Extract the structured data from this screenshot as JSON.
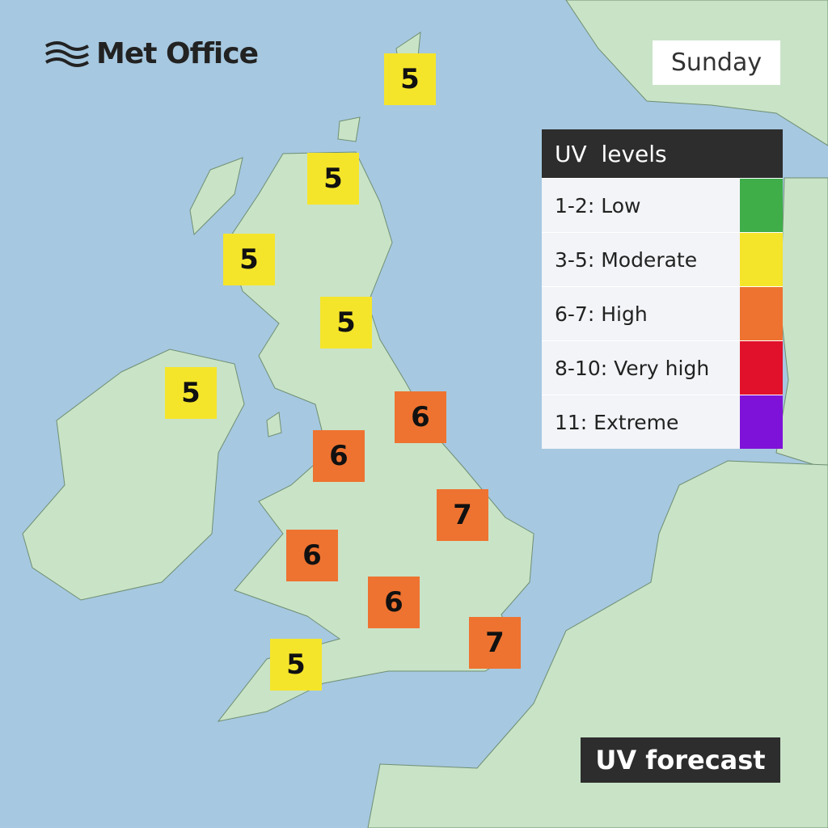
{
  "brand": "Met Office",
  "day": "Sunday",
  "legend": {
    "title": "UV  levels",
    "items": [
      {
        "label": "1-2: Low",
        "color": "#3fae49"
      },
      {
        "label": "3-5: Moderate",
        "color": "#f5e52a"
      },
      {
        "label": "6-7: High",
        "color": "#ee7330"
      },
      {
        "label": "8-10: Very high",
        "color": "#e2112b"
      },
      {
        "label": "11: Extreme",
        "color": "#7f12d8"
      }
    ]
  },
  "markers": [
    {
      "value": 5,
      "color": "#f5e52a"
    },
    {
      "value": 5,
      "color": "#f5e52a"
    },
    {
      "value": 5,
      "color": "#f5e52a"
    },
    {
      "value": 5,
      "color": "#f5e52a"
    },
    {
      "value": 5,
      "color": "#f5e52a"
    },
    {
      "value": 6,
      "color": "#ee7330"
    },
    {
      "value": 6,
      "color": "#ee7330"
    },
    {
      "value": 7,
      "color": "#ee7330"
    },
    {
      "value": 6,
      "color": "#ee7330"
    },
    {
      "value": 6,
      "color": "#ee7330"
    },
    {
      "value": 7,
      "color": "#ee7330"
    },
    {
      "value": 5,
      "color": "#f5e52a"
    }
  ],
  "footer": "UV forecast"
}
